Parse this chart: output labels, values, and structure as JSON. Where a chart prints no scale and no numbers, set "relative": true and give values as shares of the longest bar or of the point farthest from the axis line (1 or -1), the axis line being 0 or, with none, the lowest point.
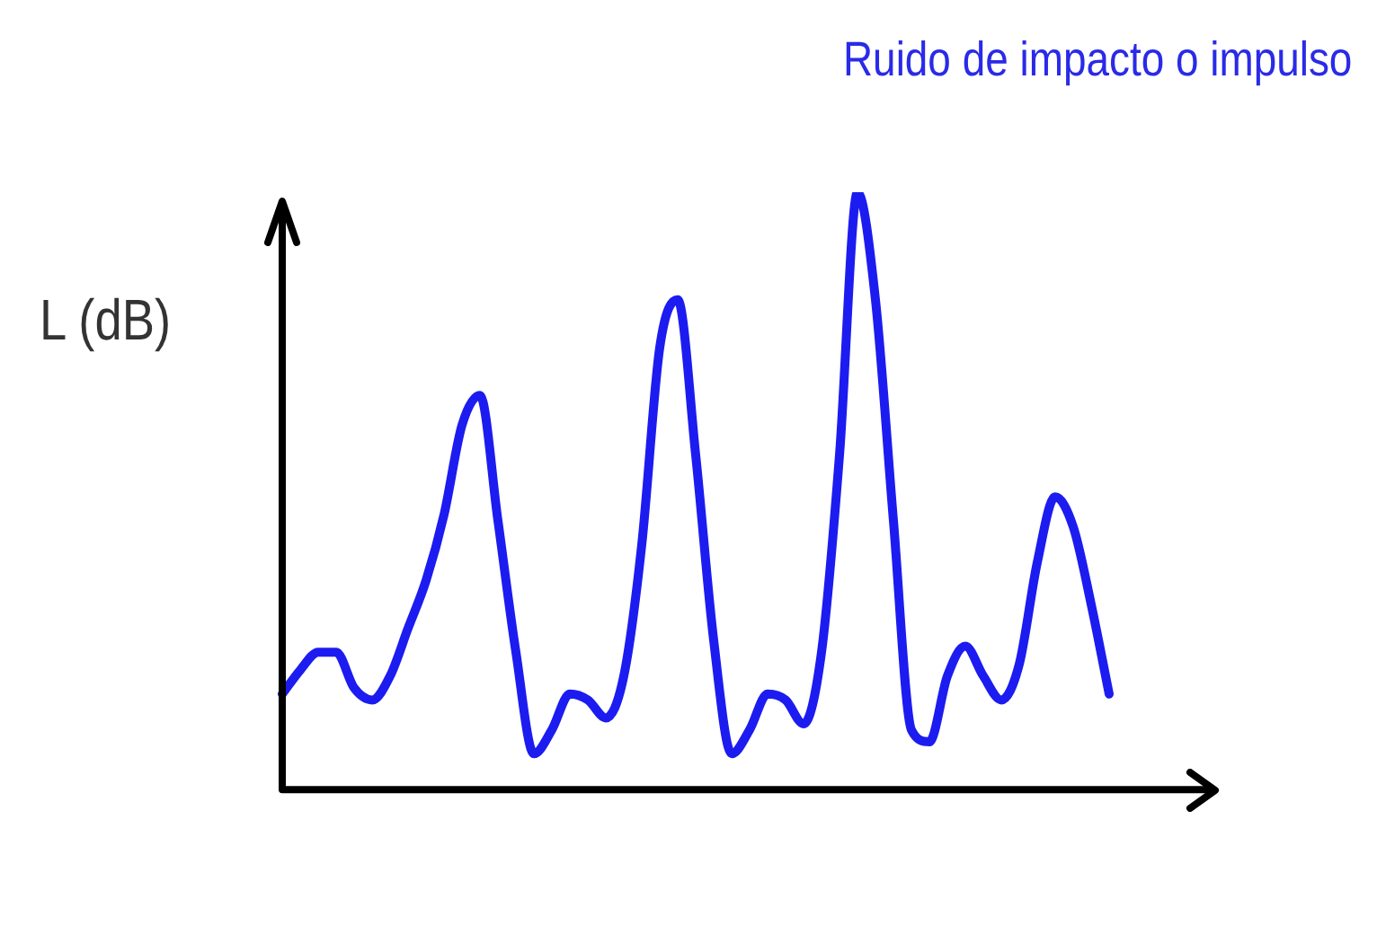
{
  "chart_data": {
    "type": "line",
    "title": "Ruido de impacto o impulso",
    "ylabel": "L (dB)",
    "relative": true,
    "legend": false,
    "marker": "none",
    "line_style": "solid",
    "categories": [
      null,
      null,
      null,
      null,
      null,
      null,
      null,
      null,
      null,
      null,
      null,
      null,
      null,
      null,
      null,
      null,
      null,
      null,
      null,
      null,
      null,
      null,
      null,
      null,
      null,
      null,
      null,
      null,
      null,
      null,
      null,
      null,
      null,
      null,
      null,
      null,
      null,
      null,
      null,
      null,
      null,
      null,
      null,
      null,
      null,
      null,
      null,
      null,
      null,
      null,
      null
    ],
    "series": [
      {
        "color": "#1c1cf0",
        "values": [
          0.16,
          0.2,
          0.23,
          0.23,
          0.17,
          0.15,
          0.19,
          0.27,
          0.35,
          0.46,
          0.61,
          0.66,
          0.45,
          0.23,
          0.06,
          0.1,
          0.16,
          0.15,
          0.12,
          0.19,
          0.41,
          0.74,
          0.82,
          0.56,
          0.25,
          0.06,
          0.1,
          0.16,
          0.15,
          0.11,
          0.23,
          0.56,
          1,
          0.82,
          0.45,
          0.1,
          0.08,
          0.19,
          0.24,
          0.19,
          0.15,
          0.21,
          0.38,
          0.49,
          0.44,
          0.31,
          0.16,
          null,
          null,
          null,
          null
        ]
      }
    ]
  }
}
